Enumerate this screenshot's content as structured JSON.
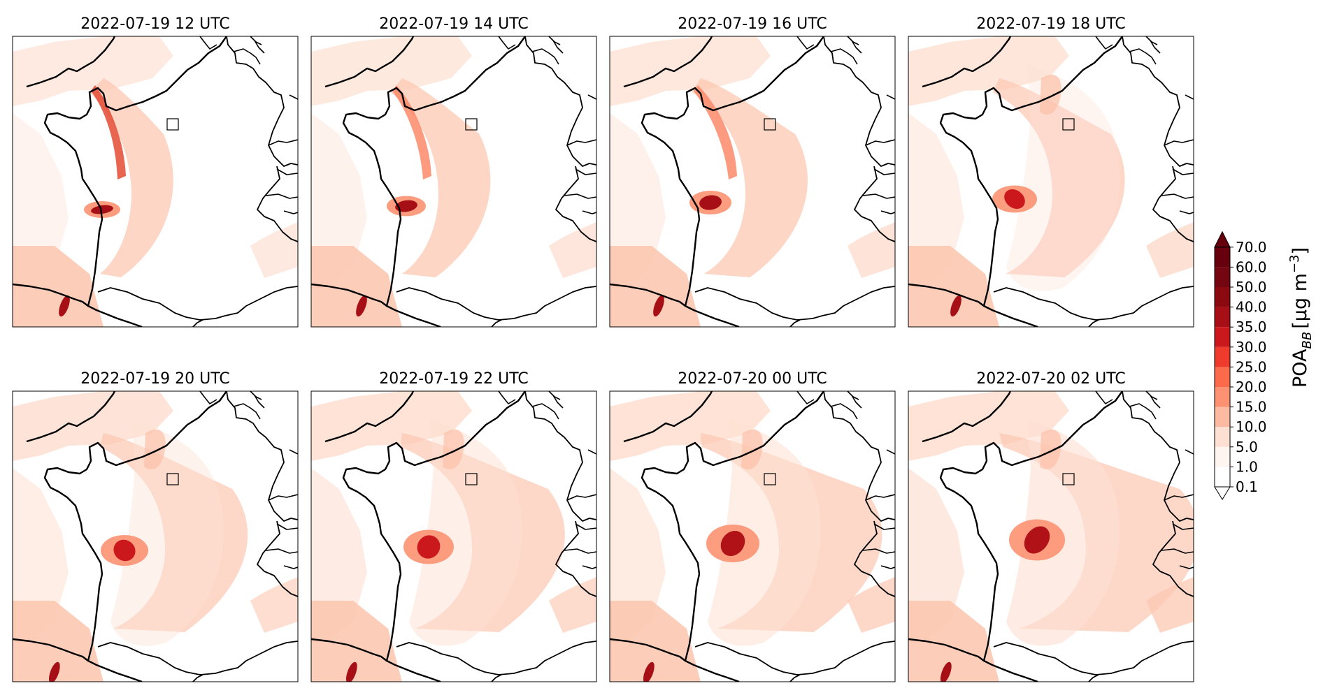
{
  "figure": {
    "panels": [
      {
        "title": "2022-07-19 12 UTC",
        "stage": 0
      },
      {
        "title": "2022-07-19 14 UTC",
        "stage": 1
      },
      {
        "title": "2022-07-19 16 UTC",
        "stage": 2
      },
      {
        "title": "2022-07-19 18 UTC",
        "stage": 3
      },
      {
        "title": "2022-07-19 20 UTC",
        "stage": 4
      },
      {
        "title": "2022-07-19 22 UTC",
        "stage": 5
      },
      {
        "title": "2022-07-20 00 UTC",
        "stage": 6
      },
      {
        "title": "2022-07-20 02 UTC",
        "stage": 7
      }
    ]
  },
  "colorbar": {
    "label_main": "POA",
    "label_sub": "BB",
    "label_unit": "[μg m",
    "label_exp": "−3",
    "label_close": "]",
    "extend": "max",
    "levels": [
      "0.1",
      "1.0",
      "5.0",
      "10.0",
      "15.0",
      "20.0",
      "25.0",
      "30.0",
      "35.0",
      "40.0",
      "50.0",
      "60.0",
      "70.0"
    ],
    "colors": [
      "#ffffff",
      "#fff5f0",
      "#fee0d2",
      "#fcbba1",
      "#fc9272",
      "#fb6a4a",
      "#ef3b2c",
      "#cb181d",
      "#a50f15",
      "#8a0a10",
      "#730610",
      "#67000d"
    ]
  }
}
